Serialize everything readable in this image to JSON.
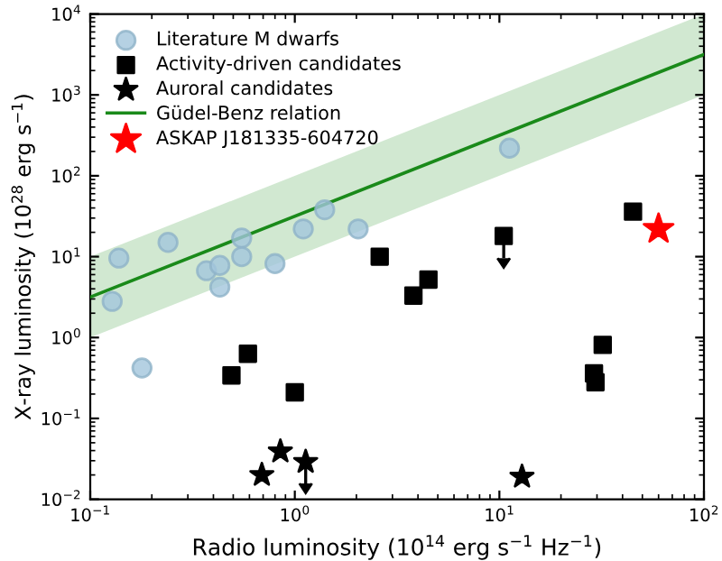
{
  "chart_data": {
    "type": "scatter",
    "xlabel": "Radio luminosity (10$^{14}$ erg s$^{−1}$ Hz$^{−1}$)",
    "ylabel": "X-ray luminosity (10$^{28}$ erg s$^{−1}$)",
    "log": "xy",
    "grid": false,
    "legend": "top left",
    "xlim": [
      0.1,
      100
    ],
    "ylim": [
      0.01,
      10000
    ],
    "xticks": [
      {
        "value": 0.1,
        "label": "10$^{−1}$"
      },
      {
        "value": 1,
        "label": "10$^{0}$"
      },
      {
        "value": 10,
        "label": "10$^{1}$"
      },
      {
        "value": 100,
        "label": "10$^{2}$"
      }
    ],
    "yticks": [
      {
        "value": 0.01,
        "label": "10$^{−2}$"
      },
      {
        "value": 0.1,
        "label": "10$^{−1}$"
      },
      {
        "value": 1,
        "label": "10$^{0}$"
      },
      {
        "value": 10,
        "label": "10$^{1}$"
      },
      {
        "value": 100,
        "label": "10$^{2}$"
      },
      {
        "value": 1000,
        "label": "10$^{3}$"
      },
      {
        "value": 10000,
        "label": "10$^{4}$"
      }
    ],
    "series": [
      {
        "name": "Literature M dwarfs",
        "marker": "circle",
        "color": "#a3c6dc",
        "x": [
          0.128,
          0.138,
          0.179,
          0.24,
          0.37,
          0.43,
          0.43,
          0.55,
          0.55,
          0.8,
          1.1,
          1.4,
          2.04,
          11.2
        ],
        "values": [
          2.8,
          9.6,
          0.42,
          15,
          6.7,
          7.8,
          4.2,
          17,
          10,
          8.2,
          22,
          38,
          22,
          220
        ]
      },
      {
        "name": "Activity-driven candidates",
        "marker": "square",
        "color": "#000000",
        "x": [
          0.49,
          0.59,
          1.0,
          2.6,
          3.8,
          4.5,
          10.5,
          29,
          29.5,
          32,
          45
        ],
        "values": [
          0.34,
          0.63,
          0.21,
          10,
          3.3,
          5.2,
          18,
          0.36,
          0.28,
          0.81,
          36
        ],
        "errors": [
          null,
          null,
          null,
          null,
          null,
          null,
          [
            9.6,
            18
          ],
          null,
          null,
          null,
          null
        ]
      },
      {
        "name": "Auroral candidates",
        "marker": "star",
        "color": "#000000",
        "x": [
          0.69,
          0.85,
          1.13,
          12.9
        ],
        "values": [
          0.02,
          0.039,
          0.029,
          0.019
        ],
        "errors": [
          null,
          null,
          [
            0.0157,
            0.029
          ],
          null
        ]
      },
      {
        "name": "Güdel-Benz relation",
        "type": "line",
        "marker": "none",
        "color": "#1a8a1a",
        "x": [
          0.1,
          100
        ],
        "values": [
          3.16,
          3162
        ],
        "lower": [
          1,
          1000
        ],
        "upper": [
          10,
          10000
        ]
      },
      {
        "name": "ASKAP J181335-604720",
        "marker": "star",
        "color": "#ff0000",
        "x": [
          60
        ],
        "values": [
          22
        ]
      }
    ]
  }
}
